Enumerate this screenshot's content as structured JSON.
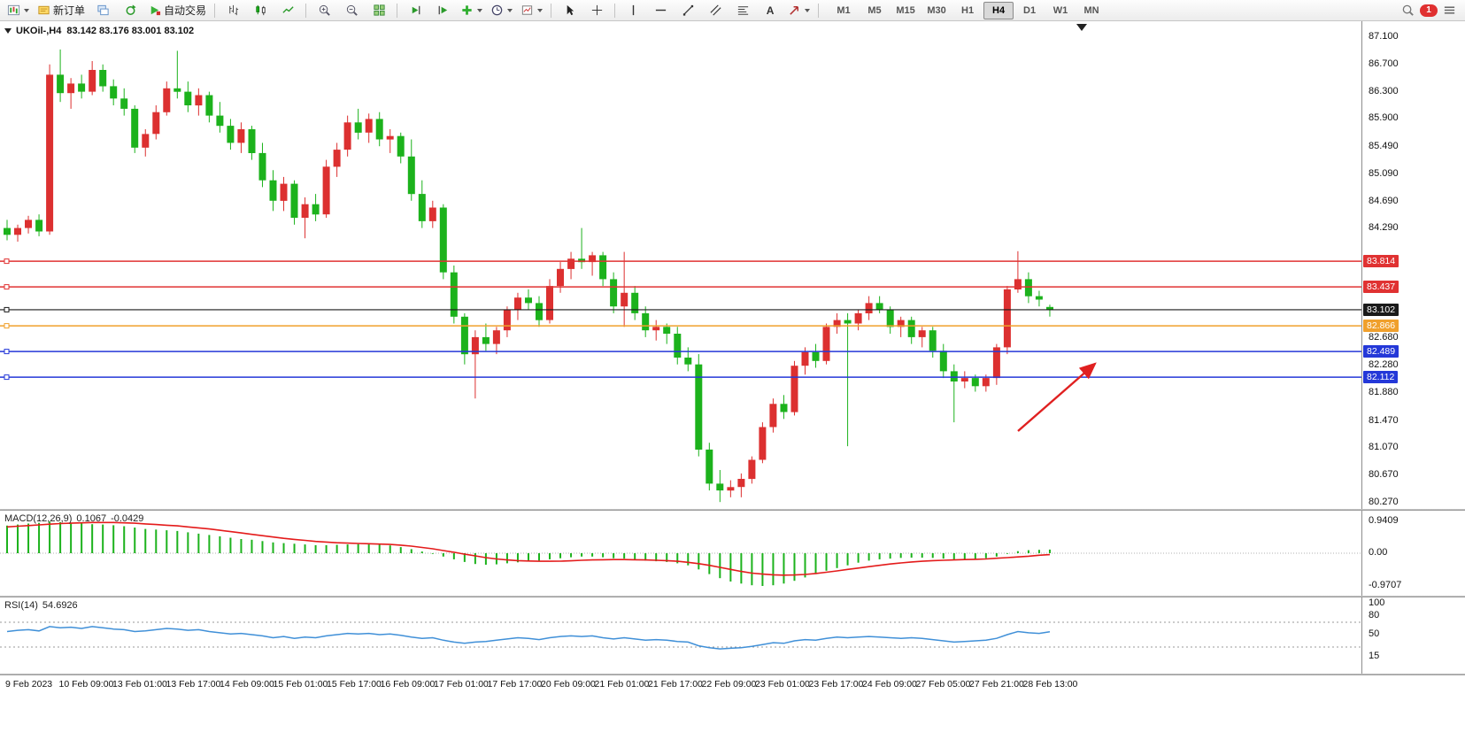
{
  "toolbar": {
    "new_order_label": "新订单",
    "algo_trading_label": "自动交易",
    "timeframes": [
      "M1",
      "M5",
      "M15",
      "M30",
      "H1",
      "H4",
      "D1",
      "W1",
      "MN"
    ],
    "active_timeframe": "H4",
    "notification_count": "1"
  },
  "icons": {
    "text_tool": "A"
  },
  "chart": {
    "symbol_period": "UKOil-,H4",
    "ohlc": "83.142 83.176 83.001 83.102",
    "open": "83.142",
    "high": "83.176",
    "low": "83.001",
    "close": "83.102"
  },
  "price_scale": {
    "ticks": [
      "87.100",
      "86.700",
      "86.300",
      "85.900",
      "85.490",
      "85.090",
      "84.690",
      "84.290",
      "82.680",
      "82.280",
      "81.880",
      "81.470",
      "81.070",
      "80.670",
      "80.270"
    ],
    "badges": [
      {
        "label": "83.814",
        "color": "#e03232"
      },
      {
        "label": "83.437",
        "color": "#e03232"
      },
      {
        "label": "83.102",
        "color": "#1a1a1a"
      },
      {
        "label": "82.866",
        "color": "#f0a02c"
      },
      {
        "label": "82.489",
        "color": "#2438d8"
      },
      {
        "label": "82.112",
        "color": "#2438d8"
      }
    ]
  },
  "indicators": {
    "macd": {
      "name": "MACD(12,26,9)",
      "value_main": "0.1067",
      "value_signal": "-0.0429",
      "scale": [
        "0.9409",
        "0.00",
        "-0.9707"
      ]
    },
    "rsi": {
      "name": "RSI(14)",
      "value": "54.6926",
      "scale": [
        "100",
        "80",
        "50",
        "15"
      ]
    }
  },
  "time_axis": [
    "9 Feb 2023",
    "10 Feb 09:00",
    "13 Feb 01:00",
    "13 Feb 17:00",
    "14 Feb 09:00",
    "15 Feb 01:00",
    "15 Feb 17:00",
    "16 Feb 09:00",
    "17 Feb 01:00",
    "17 Feb 17:00",
    "20 Feb 09:00",
    "21 Feb 01:00",
    "21 Feb 17:00",
    "22 Feb 09:00",
    "23 Feb 01:00",
    "23 Feb 17:00",
    "24 Feb 09:00",
    "27 Feb 05:00",
    "27 Feb 21:00",
    "28 Feb 13:00"
  ],
  "chart_data": {
    "type": "candlestick",
    "symbol": "UKOil-",
    "timeframe": "H4",
    "title": "UKOil-,H4 83.142 83.176 83.001 83.102",
    "price_range": [
      80.27,
      87.1
    ],
    "colors": {
      "bull": "#dc3030",
      "bear": "#1cb21c",
      "macd_histogram": "#1cb21c",
      "macd_signal": "#e41b1b",
      "rsi_line": "#4090d8",
      "arrow": "#e02020"
    },
    "candles": [
      [
        84.3,
        84.42,
        84.12,
        84.2
      ],
      [
        84.2,
        84.35,
        84.1,
        84.3
      ],
      [
        84.3,
        84.48,
        84.22,
        84.42
      ],
      [
        84.42,
        84.5,
        84.18,
        84.25
      ],
      [
        84.25,
        86.7,
        84.2,
        86.55
      ],
      [
        86.55,
        86.92,
        86.15,
        86.28
      ],
      [
        86.28,
        86.5,
        86.05,
        86.42
      ],
      [
        86.42,
        86.55,
        86.2,
        86.3
      ],
      [
        86.3,
        86.75,
        86.25,
        86.62
      ],
      [
        86.62,
        86.7,
        86.3,
        86.38
      ],
      [
        86.38,
        86.48,
        86.1,
        86.2
      ],
      [
        86.2,
        86.35,
        85.95,
        86.05
      ],
      [
        86.05,
        86.1,
        85.4,
        85.48
      ],
      [
        85.48,
        85.75,
        85.35,
        85.68
      ],
      [
        85.68,
        86.1,
        85.6,
        86.0
      ],
      [
        86.0,
        86.45,
        85.95,
        86.35
      ],
      [
        86.35,
        86.9,
        86.2,
        86.3
      ],
      [
        86.3,
        86.45,
        86.0,
        86.1
      ],
      [
        86.1,
        86.35,
        85.95,
        86.25
      ],
      [
        86.25,
        86.3,
        85.85,
        85.95
      ],
      [
        85.95,
        86.15,
        85.7,
        85.8
      ],
      [
        85.8,
        85.9,
        85.45,
        85.55
      ],
      [
        85.55,
        85.85,
        85.4,
        85.75
      ],
      [
        85.75,
        85.8,
        85.3,
        85.4
      ],
      [
        85.4,
        85.55,
        84.9,
        85.0
      ],
      [
        85.0,
        85.15,
        84.55,
        84.7
      ],
      [
        84.7,
        85.05,
        84.55,
        84.95
      ],
      [
        84.95,
        85.0,
        84.35,
        84.45
      ],
      [
        84.45,
        84.75,
        84.15,
        84.65
      ],
      [
        84.65,
        84.8,
        84.4,
        84.5
      ],
      [
        84.5,
        85.3,
        84.45,
        85.2
      ],
      [
        85.2,
        85.55,
        85.05,
        85.45
      ],
      [
        85.45,
        85.95,
        85.35,
        85.85
      ],
      [
        85.85,
        86.05,
        85.6,
        85.7
      ],
      [
        85.7,
        85.98,
        85.55,
        85.9
      ],
      [
        85.9,
        86.0,
        85.5,
        85.6
      ],
      [
        85.6,
        85.75,
        85.4,
        85.65
      ],
      [
        85.65,
        85.7,
        85.25,
        85.35
      ],
      [
        85.35,
        85.6,
        84.7,
        84.8
      ],
      [
        84.8,
        85.0,
        84.3,
        84.4
      ],
      [
        84.4,
        84.7,
        84.3,
        84.6
      ],
      [
        84.6,
        84.65,
        83.55,
        83.65
      ],
      [
        83.65,
        83.75,
        82.9,
        83.0
      ],
      [
        83.0,
        83.05,
        82.3,
        82.45
      ],
      [
        82.45,
        82.8,
        81.8,
        82.7
      ],
      [
        82.7,
        82.9,
        82.5,
        82.6
      ],
      [
        82.6,
        82.85,
        82.45,
        82.8
      ],
      [
        82.8,
        83.15,
        82.7,
        83.1
      ],
      [
        83.1,
        83.35,
        82.95,
        83.28
      ],
      [
        83.28,
        83.4,
        83.1,
        83.2
      ],
      [
        83.2,
        83.3,
        82.85,
        82.95
      ],
      [
        82.95,
        83.55,
        82.9,
        83.45
      ],
      [
        83.45,
        83.8,
        83.35,
        83.7
      ],
      [
        83.7,
        83.95,
        83.55,
        83.85
      ],
      [
        83.85,
        84.3,
        83.7,
        83.8
      ],
      [
        83.8,
        83.95,
        83.6,
        83.9
      ],
      [
        83.9,
        83.95,
        83.45,
        83.55
      ],
      [
        83.55,
        83.65,
        83.05,
        83.15
      ],
      [
        83.15,
        83.95,
        82.85,
        83.35
      ],
      [
        83.35,
        83.45,
        82.95,
        83.05
      ],
      [
        83.05,
        83.15,
        82.7,
        82.8
      ],
      [
        82.8,
        82.95,
        82.65,
        82.85
      ],
      [
        82.85,
        82.9,
        82.6,
        82.75
      ],
      [
        82.75,
        82.85,
        82.3,
        82.4
      ],
      [
        82.4,
        82.55,
        82.2,
        82.3
      ],
      [
        82.3,
        82.45,
        80.95,
        81.05
      ],
      [
        81.05,
        81.15,
        80.45,
        80.55
      ],
      [
        80.55,
        80.75,
        80.28,
        80.45
      ],
      [
        80.45,
        80.6,
        80.35,
        80.5
      ],
      [
        80.5,
        80.7,
        80.35,
        80.62
      ],
      [
        80.62,
        80.95,
        80.55,
        80.9
      ],
      [
        80.9,
        81.45,
        80.85,
        81.38
      ],
      [
        81.38,
        81.8,
        81.3,
        81.72
      ],
      [
        81.72,
        81.85,
        81.5,
        81.6
      ],
      [
        81.6,
        82.35,
        81.55,
        82.28
      ],
      [
        82.28,
        82.55,
        82.15,
        82.48
      ],
      [
        82.48,
        82.6,
        82.25,
        82.35
      ],
      [
        82.35,
        82.9,
        82.3,
        82.85
      ],
      [
        82.85,
        83.05,
        82.75,
        82.95
      ],
      [
        82.95,
        83.05,
        81.1,
        82.9
      ],
      [
        82.9,
        83.1,
        82.8,
        83.05
      ],
      [
        83.05,
        83.3,
        82.95,
        83.2
      ],
      [
        83.2,
        83.3,
        83.05,
        83.1
      ],
      [
        83.1,
        83.15,
        82.75,
        82.85
      ],
      [
        82.85,
        83.0,
        82.7,
        82.95
      ],
      [
        82.95,
        83.0,
        82.6,
        82.7
      ],
      [
        82.7,
        82.85,
        82.55,
        82.8
      ],
      [
        82.8,
        82.85,
        82.4,
        82.5
      ],
      [
        82.5,
        82.6,
        82.1,
        82.2
      ],
      [
        82.2,
        82.3,
        81.45,
        82.05
      ],
      [
        82.05,
        82.2,
        81.95,
        82.1
      ],
      [
        82.1,
        82.15,
        81.9,
        81.98
      ],
      [
        81.98,
        82.15,
        81.9,
        82.1
      ],
      [
        82.1,
        82.6,
        82.0,
        82.55
      ],
      [
        82.55,
        83.45,
        82.45,
        83.4
      ],
      [
        83.4,
        83.96,
        83.35,
        83.55
      ],
      [
        83.55,
        83.65,
        83.2,
        83.3
      ],
      [
        83.3,
        83.38,
        83.15,
        83.25
      ],
      [
        83.142,
        83.176,
        83.001,
        83.102
      ]
    ],
    "macd": {
      "histogram": [
        0.82,
        0.85,
        0.88,
        0.9,
        0.94,
        0.92,
        0.9,
        0.88,
        0.86,
        0.85,
        0.83,
        0.8,
        0.76,
        0.72,
        0.7,
        0.68,
        0.66,
        0.62,
        0.58,
        0.54,
        0.5,
        0.46,
        0.42,
        0.4,
        0.36,
        0.32,
        0.3,
        0.28,
        0.26,
        0.24,
        0.24,
        0.25,
        0.26,
        0.27,
        0.26,
        0.25,
        0.23,
        0.18,
        0.12,
        0.05,
        -0.02,
        -0.1,
        -0.18,
        -0.26,
        -0.32,
        -0.34,
        -0.33,
        -0.3,
        -0.27,
        -0.24,
        -0.22,
        -0.18,
        -0.15,
        -0.12,
        -0.1,
        -0.1,
        -0.12,
        -0.15,
        -0.16,
        -0.18,
        -0.22,
        -0.24,
        -0.26,
        -0.3,
        -0.36,
        -0.48,
        -0.62,
        -0.74,
        -0.84,
        -0.9,
        -0.95,
        -0.97,
        -0.95,
        -0.9,
        -0.82,
        -0.72,
        -0.62,
        -0.52,
        -0.44,
        -0.36,
        -0.28,
        -0.22,
        -0.18,
        -0.16,
        -0.14,
        -0.13,
        -0.13,
        -0.14,
        -0.16,
        -0.18,
        -0.18,
        -0.17,
        -0.15,
        -0.1,
        -0.02,
        0.06,
        0.09,
        0.1,
        0.1067
      ],
      "signal": [
        0.78,
        0.8,
        0.82,
        0.84,
        0.86,
        0.88,
        0.89,
        0.9,
        0.91,
        0.91,
        0.91,
        0.9,
        0.89,
        0.87,
        0.85,
        0.83,
        0.81,
        0.78,
        0.75,
        0.72,
        0.68,
        0.64,
        0.6,
        0.56,
        0.52,
        0.48,
        0.44,
        0.41,
        0.38,
        0.35,
        0.33,
        0.31,
        0.3,
        0.29,
        0.28,
        0.27,
        0.26,
        0.24,
        0.21,
        0.17,
        0.13,
        0.08,
        0.03,
        -0.03,
        -0.08,
        -0.13,
        -0.17,
        -0.2,
        -0.22,
        -0.23,
        -0.24,
        -0.24,
        -0.235,
        -0.225,
        -0.21,
        -0.2,
        -0.195,
        -0.19,
        -0.19,
        -0.195,
        -0.2,
        -0.21,
        -0.22,
        -0.24,
        -0.27,
        -0.31,
        -0.36,
        -0.42,
        -0.48,
        -0.54,
        -0.59,
        -0.62,
        -0.64,
        -0.65,
        -0.645,
        -0.63,
        -0.6,
        -0.565,
        -0.525,
        -0.48,
        -0.44,
        -0.4,
        -0.36,
        -0.32,
        -0.29,
        -0.26,
        -0.24,
        -0.22,
        -0.21,
        -0.2,
        -0.19,
        -0.18,
        -0.17,
        -0.15,
        -0.13,
        -0.11,
        -0.09,
        -0.06,
        -0.0429
      ],
      "range": [
        -0.9707,
        0.9409
      ]
    },
    "rsi": {
      "values": [
        55,
        57,
        58,
        56,
        63,
        61,
        62,
        60,
        63,
        61,
        59,
        58,
        55,
        56,
        58,
        60,
        59,
        57,
        58,
        55,
        53,
        51,
        52,
        50,
        48,
        45,
        47,
        44,
        46,
        45,
        48,
        50,
        52,
        51,
        52,
        50,
        51,
        49,
        46,
        44,
        45,
        41,
        38,
        36,
        38,
        39,
        41,
        43,
        45,
        44,
        42,
        45,
        47,
        48,
        47,
        48,
        45,
        43,
        45,
        43,
        41,
        42,
        41,
        39,
        38,
        32,
        29,
        27,
        28,
        29,
        31,
        34,
        37,
        36,
        40,
        42,
        41,
        44,
        46,
        45,
        46,
        47,
        46,
        45,
        44,
        45,
        44,
        42,
        40,
        38,
        39,
        40,
        41,
        44,
        50,
        55,
        53,
        52,
        54.69
      ],
      "levels": [
        70,
        30
      ],
      "range": [
        0,
        100
      ]
    },
    "hlines": [
      {
        "price": 83.814,
        "color": "#e03232"
      },
      {
        "price": 83.437,
        "color": "#e03232"
      },
      {
        "price": 83.102,
        "color": "#1a1a1a"
      },
      {
        "price": 82.866,
        "color": "#f0a02c"
      },
      {
        "price": 82.489,
        "color": "#2438d8"
      },
      {
        "price": 82.112,
        "color": "#2438d8"
      }
    ],
    "annotations": [
      {
        "type": "arrow",
        "direction": "up-right",
        "color": "#e02020"
      }
    ]
  }
}
